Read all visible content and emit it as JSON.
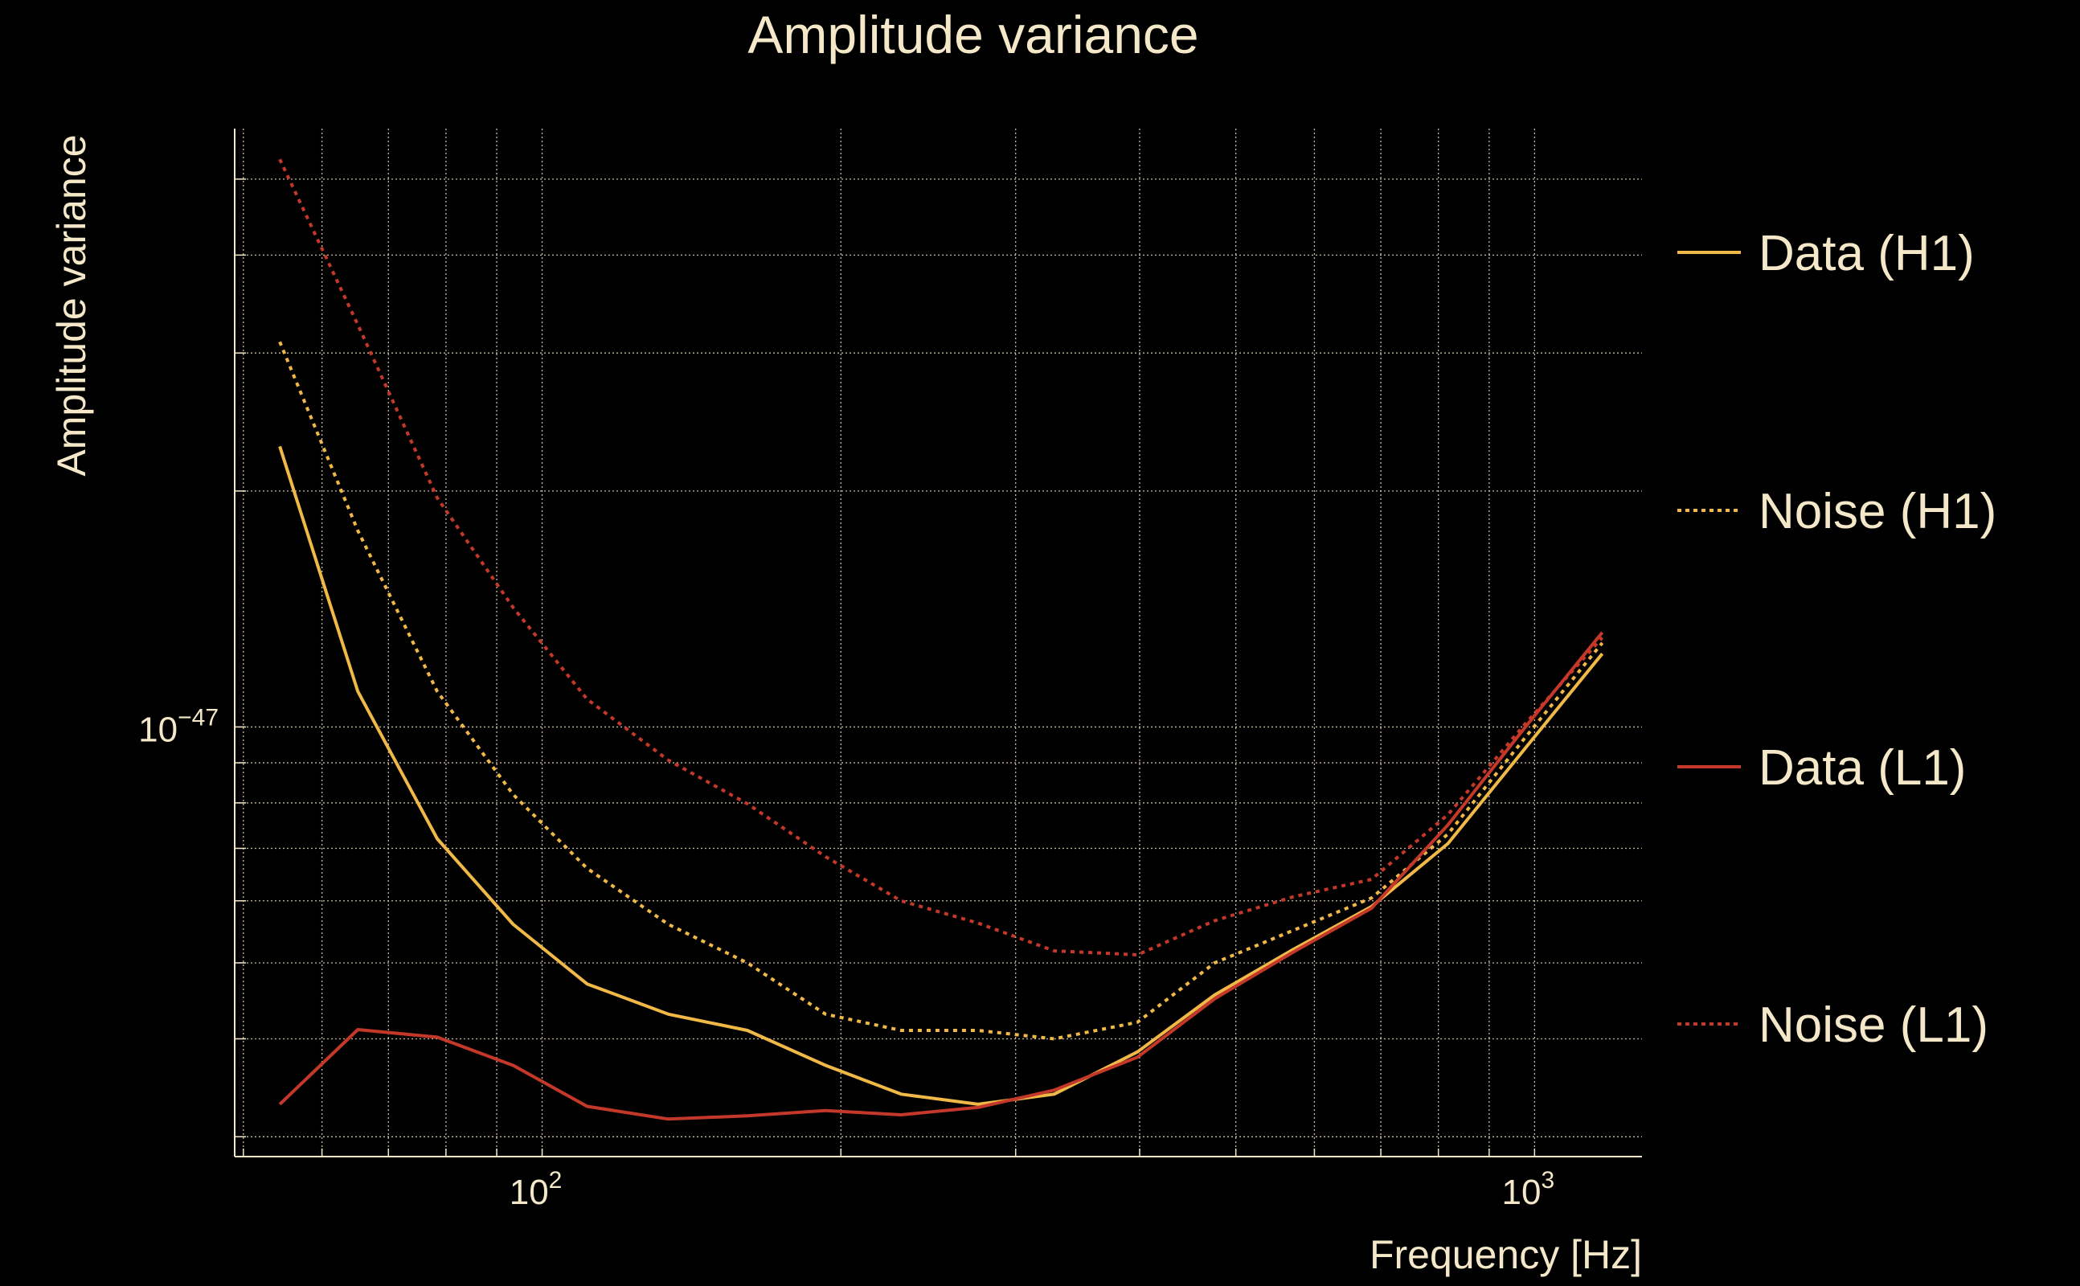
{
  "chart_data": {
    "type": "line",
    "title": "Amplitude variance",
    "xlabel": "Frequency [Hz]",
    "ylabel": "Amplitude variance",
    "xscale": "log",
    "yscale": "log",
    "xlim": [
      49,
      1283
    ],
    "ylim": [
      2.83e-48,
      5.8e-47
    ],
    "grid": true,
    "legend_placement": "right-outside",
    "x_tick_labels": [
      {
        "base": "10",
        "exp": "2",
        "value": 100
      },
      {
        "base": "10",
        "exp": "3",
        "value": 1000
      }
    ],
    "y_tick_labels": [
      {
        "base": "10",
        "exp": "−47",
        "value": 1e-47
      }
    ],
    "x_grid_values": [
      50,
      60,
      70,
      80,
      90,
      100,
      200,
      300,
      400,
      500,
      600,
      700,
      800,
      900,
      1000
    ],
    "y_grid_values": [
      3e-48,
      4e-48,
      5e-48,
      6e-48,
      7e-48,
      8e-48,
      9e-48,
      1e-47,
      2e-47,
      3e-47,
      4e-47,
      5e-47
    ],
    "x": [
      54.4,
      65.2,
      78.4,
      93.5,
      111,
      134,
      161,
      193,
      230,
      275,
      328,
      398,
      476,
      571,
      685,
      818,
      979,
      1170
    ],
    "series": [
      {
        "name": "Data (H1)",
        "color": "#f0b846",
        "style": "solid",
        "values": [
          2.28e-47,
          1.11e-47,
          7.2e-48,
          5.6e-48,
          4.7e-48,
          4.3e-48,
          4.1e-48,
          3.7e-48,
          3.4e-48,
          3.3e-48,
          3.4e-48,
          3.85e-48,
          4.55e-48,
          5.2e-48,
          5.9e-48,
          7.1e-48,
          9.4e-48,
          1.24e-47
        ]
      },
      {
        "name": "Noise (H1)",
        "color": "#f0b846",
        "style": "dotted",
        "values": [
          3.1e-47,
          1.78e-47,
          1.11e-47,
          8.2e-48,
          6.6e-48,
          5.6e-48,
          5e-48,
          4.3e-48,
          4.1e-48,
          4.1e-48,
          4e-48,
          4.2e-48,
          5e-48,
          5.5e-48,
          6.05e-48,
          7.3e-48,
          9.7e-48,
          1.28e-47
        ]
      },
      {
        "name": "Data (L1)",
        "color": "#c4382a",
        "style": "solid",
        "values": [
          3.3e-48,
          4.11e-48,
          4.02e-48,
          3.7e-48,
          3.28e-48,
          3.16e-48,
          3.19e-48,
          3.24e-48,
          3.2e-48,
          3.27e-48,
          3.44e-48,
          3.79e-48,
          4.5e-48,
          5.16e-48,
          5.87e-48,
          7.5e-48,
          1e-47,
          1.32e-47
        ]
      },
      {
        "name": "Noise (L1)",
        "color": "#c4382a",
        "style": "dotted",
        "values": [
          5.3e-47,
          3.26e-47,
          1.96e-47,
          1.42e-47,
          1.085e-47,
          9.07e-48,
          7.98e-48,
          6.83e-48,
          6e-48,
          5.62e-48,
          5.18e-48,
          5.12e-48,
          5.66e-48,
          6.07e-48,
          6.39e-48,
          7.73e-48,
          1.01e-47,
          1.3e-47
        ]
      }
    ]
  }
}
